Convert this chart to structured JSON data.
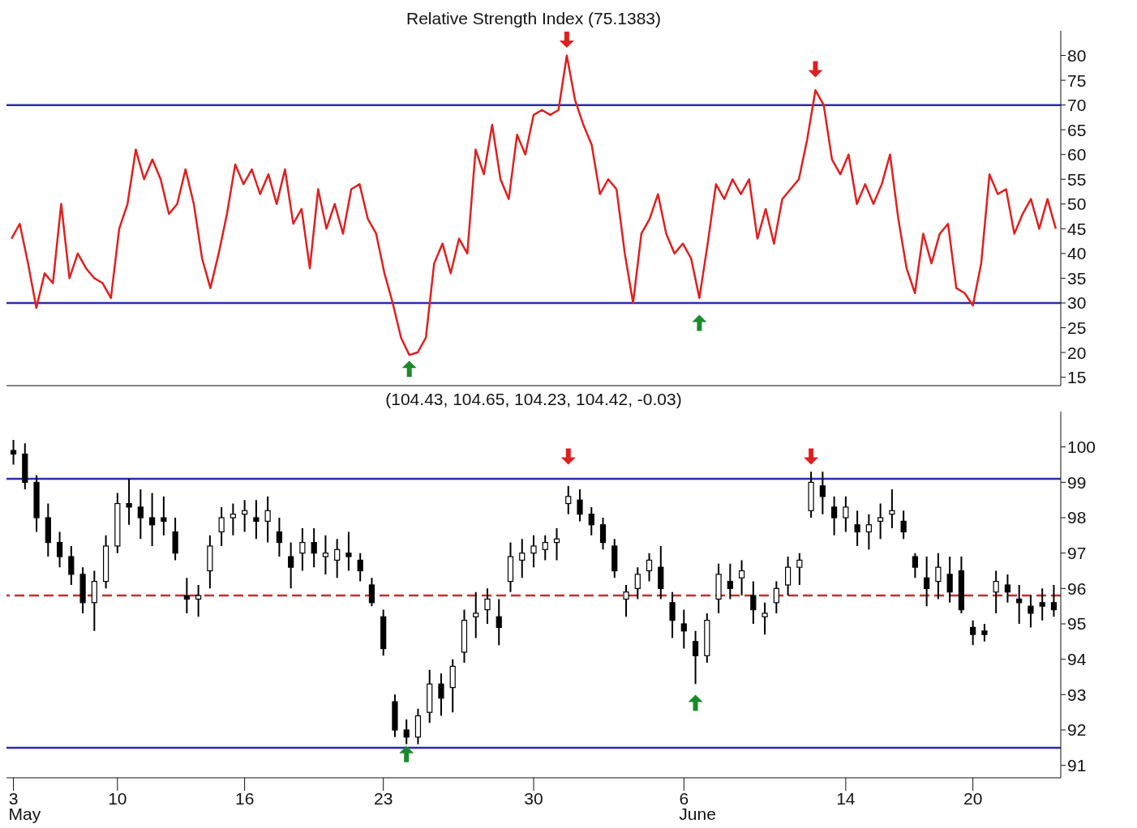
{
  "chart_data": [
    {
      "type": "line",
      "title": "Relative Strength Index (75.1383)",
      "tick_labels": "y",
      "categories": [
        null,
        null,
        null,
        null,
        null,
        null,
        null,
        null,
        null,
        null,
        null,
        null,
        null,
        null,
        null,
        null,
        null,
        null,
        null,
        null,
        null,
        null,
        null,
        null,
        null,
        null,
        null,
        null,
        null,
        null,
        null,
        null,
        null,
        null,
        null,
        null,
        null,
        null,
        null,
        null,
        null,
        null,
        null,
        null,
        null,
        null,
        null,
        null,
        null,
        null,
        null,
        null,
        null,
        null,
        null,
        null,
        null,
        null,
        null,
        null,
        null,
        null,
        null,
        null,
        null,
        null,
        null,
        null,
        null,
        null,
        null,
        null,
        null,
        null,
        null,
        null,
        null,
        null,
        null,
        null,
        null,
        null,
        null,
        null,
        null,
        null,
        null,
        null,
        null,
        null,
        null,
        null,
        null,
        null,
        null,
        null,
        null,
        null,
        null,
        null,
        null,
        null,
        null,
        null,
        null,
        null,
        null,
        null,
        null,
        null,
        null,
        null,
        null,
        null,
        null,
        null,
        null,
        null,
        null,
        null,
        null,
        null,
        null,
        null,
        null,
        null,
        null
      ],
      "series": [
        {
          "color": "#e02020",
          "values": [
            43,
            46,
            38,
            29,
            36,
            34,
            50,
            35,
            40,
            37,
            35,
            34,
            31,
            45,
            50,
            61,
            55,
            59,
            55,
            48,
            50,
            57,
            50,
            39,
            33,
            40,
            48,
            58,
            54,
            57,
            52,
            56,
            50,
            57,
            46,
            49,
            37,
            53,
            45,
            50,
            44,
            53,
            54,
            47,
            44,
            36,
            30,
            23,
            19.5,
            20,
            23,
            38,
            42,
            36,
            43,
            40,
            61,
            56,
            66,
            55,
            51,
            64,
            60,
            68,
            69,
            68,
            69,
            80,
            71,
            66,
            62,
            52,
            55,
            53,
            40,
            30,
            44,
            47,
            52,
            44,
            40,
            42,
            39,
            31,
            42,
            54,
            51,
            55,
            52,
            55,
            43,
            49,
            42,
            51,
            53,
            55,
            63,
            73,
            70,
            59,
            56,
            60,
            50,
            54,
            50,
            54,
            60,
            47,
            37,
            32,
            44,
            38,
            44,
            46,
            33,
            32,
            29.5,
            38,
            56,
            52,
            53,
            44,
            48,
            51,
            45,
            51,
            45
          ]
        }
      ],
      "ylim": [
        13.3,
        85
      ],
      "yticks": [
        15,
        20,
        25,
        30,
        35,
        40,
        45,
        50,
        55,
        60,
        65,
        70,
        75,
        80
      ],
      "ref_lines": [
        {
          "axis": "y",
          "value": 70,
          "color": "#2b2bb0"
        },
        {
          "axis": "y",
          "value": 30,
          "color": "#2b2bb0"
        }
      ]
    },
    {
      "type": "candlestick",
      "title": "(104.43, 104.65, 104.23, 104.42, -0.03)",
      "color": "#000000",
      "categories": [
        "3",
        null,
        null,
        null,
        null,
        null,
        null,
        null,
        null,
        "10",
        null,
        null,
        null,
        null,
        null,
        null,
        null,
        null,
        null,
        null,
        "16",
        null,
        null,
        null,
        null,
        null,
        null,
        null,
        null,
        null,
        null,
        null,
        "23",
        null,
        null,
        null,
        null,
        null,
        null,
        null,
        null,
        null,
        null,
        null,
        null,
        "30",
        null,
        null,
        null,
        null,
        null,
        null,
        null,
        null,
        null,
        null,
        null,
        null,
        "6",
        null,
        null,
        null,
        null,
        null,
        null,
        null,
        null,
        null,
        null,
        null,
        null,
        null,
        "14",
        null,
        null,
        null,
        null,
        null,
        null,
        null,
        null,
        null,
        null,
        "20",
        null,
        null,
        null,
        null,
        null,
        null,
        null
      ],
      "annotations": [
        "May",
        "June"
      ],
      "ohlc": [
        [
          99.9,
          100.2,
          99.5,
          99.8
        ],
        [
          99.8,
          100.1,
          98.8,
          99.0
        ],
        [
          99.0,
          99.2,
          97.6,
          98.0
        ],
        [
          98.0,
          98.4,
          96.9,
          97.3
        ],
        [
          97.3,
          97.6,
          96.6,
          96.9
        ],
        [
          96.9,
          97.2,
          96.1,
          96.4
        ],
        [
          96.4,
          96.6,
          95.3,
          95.6
        ],
        [
          95.6,
          96.5,
          94.8,
          96.2
        ],
        [
          96.2,
          97.5,
          96.0,
          97.2
        ],
        [
          97.2,
          98.7,
          97.0,
          98.4
        ],
        [
          98.4,
          99.1,
          97.8,
          98.3
        ],
        [
          98.3,
          98.8,
          97.4,
          98.0
        ],
        [
          98.0,
          98.7,
          97.2,
          97.8
        ],
        [
          98.0,
          98.6,
          97.5,
          97.9
        ],
        [
          97.6,
          98.0,
          96.8,
          97.0
        ],
        [
          95.8,
          96.3,
          95.3,
          95.7
        ],
        [
          95.7,
          96.1,
          95.2,
          95.8
        ],
        [
          96.5,
          97.5,
          96.0,
          97.2
        ],
        [
          97.6,
          98.3,
          97.2,
          98.0
        ],
        [
          98.0,
          98.4,
          97.5,
          98.1
        ],
        [
          98.1,
          98.5,
          97.6,
          98.2
        ],
        [
          98.0,
          98.5,
          97.4,
          97.9
        ],
        [
          97.9,
          98.6,
          97.3,
          98.2
        ],
        [
          97.6,
          98.0,
          96.9,
          97.3
        ],
        [
          96.9,
          97.3,
          96.0,
          96.6
        ],
        [
          97.0,
          97.7,
          96.5,
          97.3
        ],
        [
          97.3,
          97.7,
          96.6,
          97.0
        ],
        [
          96.9,
          97.5,
          96.4,
          97.0
        ],
        [
          96.8,
          97.4,
          96.3,
          97.1
        ],
        [
          97.0,
          97.6,
          96.5,
          96.9
        ],
        [
          96.8,
          97.0,
          96.2,
          96.5
        ],
        [
          96.1,
          96.3,
          95.5,
          95.6
        ],
        [
          95.2,
          95.4,
          94.1,
          94.3
        ],
        [
          92.8,
          93.0,
          91.8,
          92.0
        ],
        [
          92.0,
          92.3,
          91.6,
          91.8
        ],
        [
          91.8,
          92.6,
          91.6,
          92.4
        ],
        [
          92.5,
          93.7,
          92.2,
          93.3
        ],
        [
          93.3,
          93.6,
          92.4,
          92.9
        ],
        [
          93.2,
          94.0,
          92.5,
          93.8
        ],
        [
          94.2,
          95.4,
          93.9,
          95.1
        ],
        [
          95.2,
          95.9,
          94.6,
          95.3
        ],
        [
          95.4,
          96.0,
          95.0,
          95.7
        ],
        [
          95.2,
          95.7,
          94.4,
          94.9
        ],
        [
          96.2,
          97.3,
          95.9,
          96.9
        ],
        [
          96.8,
          97.4,
          96.3,
          97.0
        ],
        [
          97.0,
          97.5,
          96.6,
          97.2
        ],
        [
          97.1,
          97.5,
          96.8,
          97.3
        ],
        [
          97.3,
          97.7,
          96.8,
          97.4
        ],
        [
          98.4,
          98.9,
          98.1,
          98.6
        ],
        [
          98.5,
          98.8,
          97.9,
          98.1
        ],
        [
          98.1,
          98.3,
          97.5,
          97.8
        ],
        [
          97.8,
          98.0,
          97.1,
          97.3
        ],
        [
          97.2,
          97.4,
          96.3,
          96.5
        ],
        [
          95.7,
          96.1,
          95.2,
          95.9
        ],
        [
          96.0,
          96.6,
          95.7,
          96.4
        ],
        [
          96.5,
          97.0,
          96.2,
          96.8
        ],
        [
          96.6,
          97.2,
          95.7,
          96.0
        ],
        [
          95.6,
          95.9,
          94.6,
          95.1
        ],
        [
          95.0,
          95.4,
          94.3,
          94.8
        ],
        [
          94.5,
          94.8,
          93.3,
          94.1
        ],
        [
          94.1,
          95.3,
          93.9,
          95.1
        ],
        [
          95.7,
          96.7,
          95.3,
          96.4
        ],
        [
          96.2,
          96.7,
          95.7,
          96.0
        ],
        [
          96.3,
          96.8,
          95.8,
          96.5
        ],
        [
          95.8,
          96.2,
          95.0,
          95.4
        ],
        [
          95.2,
          95.6,
          94.7,
          95.3
        ],
        [
          95.6,
          96.2,
          95.3,
          96.0
        ],
        [
          96.1,
          96.9,
          95.8,
          96.6
        ],
        [
          96.6,
          97.0,
          96.1,
          96.8
        ],
        [
          98.2,
          99.3,
          98.0,
          99.0
        ],
        [
          98.9,
          99.3,
          98.1,
          98.6
        ],
        [
          98.3,
          98.6,
          97.5,
          98.0
        ],
        [
          98.0,
          98.6,
          97.6,
          98.3
        ],
        [
          97.8,
          98.2,
          97.2,
          97.6
        ],
        [
          97.6,
          98.1,
          97.1,
          97.8
        ],
        [
          97.9,
          98.4,
          97.4,
          98.0
        ],
        [
          98.1,
          98.8,
          97.7,
          98.2
        ],
        [
          97.9,
          98.2,
          97.4,
          97.6
        ],
        [
          96.9,
          97.0,
          96.3,
          96.6
        ],
        [
          96.3,
          96.9,
          95.5,
          96.0
        ],
        [
          96.2,
          97.0,
          95.7,
          96.6
        ],
        [
          96.4,
          96.9,
          95.6,
          95.9
        ],
        [
          96.5,
          96.9,
          95.3,
          95.4
        ],
        [
          94.9,
          95.1,
          94.4,
          94.7
        ],
        [
          94.8,
          95.0,
          94.5,
          94.7
        ],
        [
          95.9,
          96.5,
          95.3,
          96.2
        ],
        [
          96.1,
          96.4,
          95.6,
          95.9
        ],
        [
          95.7,
          96.1,
          95.0,
          95.6
        ],
        [
          95.5,
          95.8,
          94.9,
          95.3
        ],
        [
          95.6,
          96.0,
          95.1,
          95.5
        ],
        [
          95.6,
          96.1,
          95.2,
          95.4
        ]
      ],
      "ylim": [
        90.65,
        101
      ],
      "yticks": [
        91,
        92,
        93,
        94,
        95,
        96,
        97,
        98,
        99,
        100
      ],
      "ref_lines": [
        {
          "axis": "y",
          "value": 99.1,
          "color": "#2b2bb0"
        },
        {
          "axis": "y",
          "value": 91.5,
          "color": "#2b2bb0"
        },
        {
          "axis": "y",
          "value": 95.8,
          "color": "#c03030",
          "line_style": "dashed"
        }
      ]
    }
  ]
}
